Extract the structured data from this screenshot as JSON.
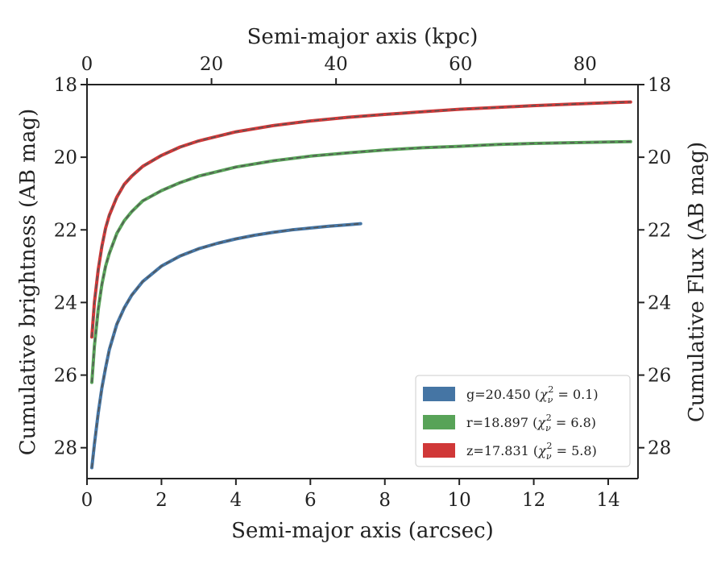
{
  "chart_data": {
    "type": "line",
    "xlabel": "Semi-major axis (arcsec)",
    "ylabel": "Cumulative brightness (AB mag)",
    "top_xlabel": "Semi-major axis (kpc)",
    "right_ylabel": "Cumulative Flux (AB mag)",
    "xlim": [
      0,
      14.8
    ],
    "ylim": [
      28.85,
      18
    ],
    "y_inverted": true,
    "top_xlim": [
      0,
      88.5
    ],
    "x_ticks": [
      0,
      2,
      4,
      6,
      8,
      10,
      12,
      14
    ],
    "top_x_ticks": [
      0,
      20,
      40,
      60,
      80
    ],
    "y_ticks": [
      18,
      20,
      22,
      24,
      26,
      28
    ],
    "grid": false,
    "legend_position": "lower-right",
    "colors": {
      "g": "#4575a4",
      "r": "#58a358",
      "z": "#d03838",
      "model": "#555555",
      "axes": "#222222"
    },
    "series": [
      {
        "name": "g=20.450 ($\\chi^2_\\nu=0.1$)",
        "legend_prefix": "g=20.450 (",
        "legend_suffix": ")",
        "chi_value": "0.1",
        "color": "#4575a4",
        "x": [
          0.13,
          0.2,
          0.3,
          0.4,
          0.5,
          0.6,
          0.8,
          1.0,
          1.2,
          1.5,
          2.0,
          2.5,
          3.0,
          3.5,
          4.0,
          4.5,
          5.0,
          5.5,
          6.0,
          6.5,
          7.0,
          7.35
        ],
        "y": [
          28.55,
          27.9,
          27.05,
          26.35,
          25.8,
          25.3,
          24.6,
          24.15,
          23.8,
          23.42,
          23.0,
          22.72,
          22.52,
          22.37,
          22.25,
          22.15,
          22.07,
          22.0,
          21.95,
          21.9,
          21.86,
          21.83
        ]
      },
      {
        "name": "r=18.897 ($\\chi^2_\\nu=6.8$)",
        "legend_prefix": "r=18.897 (",
        "legend_suffix": ")",
        "chi_value": "6.8",
        "color": "#58a358",
        "x": [
          0.13,
          0.2,
          0.3,
          0.4,
          0.5,
          0.6,
          0.8,
          1.0,
          1.2,
          1.5,
          2.0,
          2.5,
          3.0,
          4.0,
          5.0,
          6.0,
          7.0,
          8.0,
          9.0,
          10.0,
          11.0,
          12.0,
          13.0,
          14.0,
          14.6
        ],
        "y": [
          26.2,
          25.2,
          24.2,
          23.5,
          23.0,
          22.65,
          22.1,
          21.75,
          21.5,
          21.2,
          20.92,
          20.7,
          20.52,
          20.27,
          20.1,
          19.97,
          19.88,
          19.8,
          19.74,
          19.7,
          19.65,
          19.62,
          19.6,
          19.58,
          19.57
        ]
      },
      {
        "name": "z=17.831 ($\\chi^2_\\nu=5.8$)",
        "legend_prefix": "z=17.831 (",
        "legend_suffix": ")",
        "chi_value": "5.8",
        "color": "#d03838",
        "x": [
          0.13,
          0.2,
          0.3,
          0.4,
          0.5,
          0.6,
          0.8,
          1.0,
          1.2,
          1.5,
          2.0,
          2.5,
          3.0,
          4.0,
          5.0,
          6.0,
          7.0,
          8.0,
          9.0,
          10.0,
          11.0,
          12.0,
          13.0,
          14.0,
          14.6
        ],
        "y": [
          24.95,
          24.0,
          23.1,
          22.45,
          21.95,
          21.6,
          21.1,
          20.75,
          20.52,
          20.25,
          19.95,
          19.72,
          19.55,
          19.3,
          19.13,
          19.0,
          18.9,
          18.82,
          18.75,
          18.68,
          18.63,
          18.58,
          18.54,
          18.5,
          18.48
        ]
      }
    ]
  }
}
